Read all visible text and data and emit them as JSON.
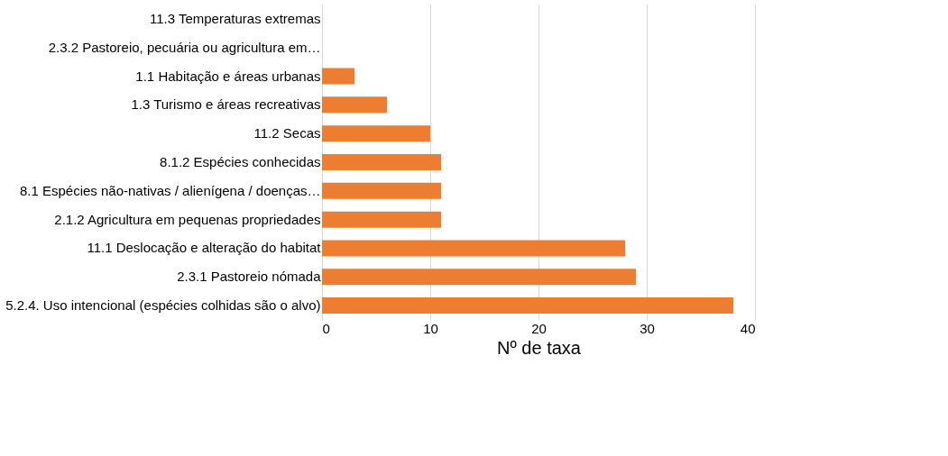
{
  "chart_data": {
    "type": "bar",
    "orientation": "horizontal",
    "categories": [
      "11.3 Temperaturas extremas",
      "2.3.2 Pastoreio, pecuária ou agricultura em…",
      "1.1 Habitação e áreas urbanas",
      "1.3 Turismo e áreas recreativas",
      "11.2 Secas",
      "8.1.2 Espécies conhecidas",
      "8.1 Espécies não-nativas / alienígena / doenças…",
      "2.1.2 Agricultura em pequenas propriedades",
      "11.1 Deslocação e alteração do habitat",
      "2.3.1 Pastoreio nómada",
      "5.2.4. Uso intencional (espécies colhidas são o alvo)"
    ],
    "values": [
      0,
      0,
      3,
      6,
      10,
      11,
      11,
      11,
      28,
      29,
      38
    ],
    "color": "#ed7d31",
    "xlabel": "Nº de taxa",
    "xlim": [
      0,
      40
    ],
    "xticks": [
      0,
      10,
      20,
      30,
      40
    ],
    "grid": "x"
  }
}
